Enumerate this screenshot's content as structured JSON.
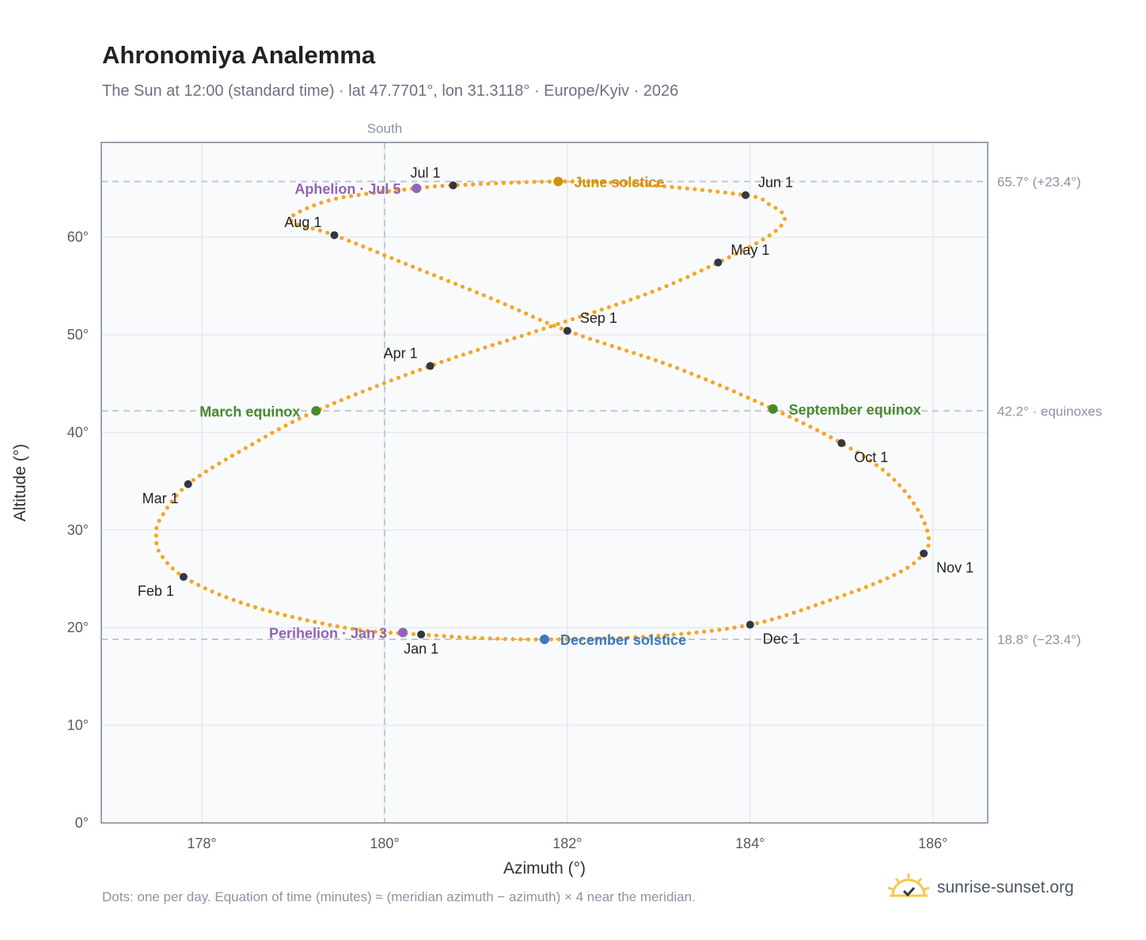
{
  "title": "Ahronomiya Analemma",
  "subtitle": "The Sun at 12:00 (standard time) · lat 47.7701°, lon 31.3118° · Europe/Kyiv · 2026",
  "footnote": "Dots: one per day. Equation of time (minutes) ≈ (meridian azimuth − azimuth) × 4 near the meridian.",
  "brand": {
    "text": "sunrise-sunset.org",
    "icon": "sunrise-check-icon"
  },
  "colors": {
    "path": "#f5a623",
    "month": "#333840",
    "june": "#d4900a",
    "december": "#3a78c2",
    "equinox": "#4a8a2e",
    "perihelion": "#9263b5",
    "grid": "#e6e9ee",
    "refline": "#c2c7cf",
    "plot_bg": "#f8fafc",
    "frame": "#9aa3b1",
    "axis_text": "#555b66"
  },
  "chart_data": {
    "type": "scatter",
    "title": "Ahronomiya Analemma",
    "xlabel": "Azimuth (°)",
    "ylabel": "Altitude (°)",
    "xlim": [
      176.9,
      186.6
    ],
    "ylim": [
      0,
      69.7
    ],
    "xticks": [
      {
        "v": 178,
        "label": "178°"
      },
      {
        "v": 180,
        "label": "180°"
      },
      {
        "v": 182,
        "label": "182°"
      },
      {
        "v": 184,
        "label": "184°"
      },
      {
        "v": 186,
        "label": "186°"
      }
    ],
    "yticks": [
      {
        "v": 0,
        "label": "0°"
      },
      {
        "v": 10,
        "label": "10°"
      },
      {
        "v": 20,
        "label": "20°"
      },
      {
        "v": 30,
        "label": "30°"
      },
      {
        "v": 40,
        "label": "40°"
      },
      {
        "v": 50,
        "label": "50°"
      },
      {
        "v": 60,
        "label": "60°"
      }
    ],
    "grid": true,
    "vertical_ref": {
      "x": 180,
      "label": "South"
    },
    "horizontal_refs": [
      {
        "y": 65.7,
        "label": "65.7° (+23.4°)"
      },
      {
        "y": 42.2,
        "label": "42.2° · equinoxes"
      },
      {
        "y": 18.8,
        "label": "18.8° (−23.4°)"
      }
    ],
    "analemma_path": [
      {
        "x": 180.4,
        "y": 19.3
      },
      {
        "x": 179.7,
        "y": 19.8
      },
      {
        "x": 178.9,
        "y": 21.3
      },
      {
        "x": 178.3,
        "y": 23.0
      },
      {
        "x": 177.8,
        "y": 25.2
      },
      {
        "x": 177.55,
        "y": 27.5
      },
      {
        "x": 177.5,
        "y": 29.4
      },
      {
        "x": 177.55,
        "y": 31.2
      },
      {
        "x": 177.85,
        "y": 34.7
      },
      {
        "x": 178.5,
        "y": 38.5
      },
      {
        "x": 179.25,
        "y": 42.2
      },
      {
        "x": 180.5,
        "y": 46.8
      },
      {
        "x": 181.8,
        "y": 50.8
      },
      {
        "x": 182.9,
        "y": 54.3
      },
      {
        "x": 183.65,
        "y": 57.4
      },
      {
        "x": 184.2,
        "y": 60.1
      },
      {
        "x": 184.38,
        "y": 62.0
      },
      {
        "x": 184.2,
        "y": 63.4
      },
      {
        "x": 183.95,
        "y": 64.3
      },
      {
        "x": 182.8,
        "y": 65.4
      },
      {
        "x": 181.9,
        "y": 65.7
      },
      {
        "x": 180.75,
        "y": 65.3
      },
      {
        "x": 180.35,
        "y": 65.0
      },
      {
        "x": 179.5,
        "y": 64.0
      },
      {
        "x": 179.05,
        "y": 62.5
      },
      {
        "x": 179.0,
        "y": 61.5
      },
      {
        "x": 179.45,
        "y": 60.2
      },
      {
        "x": 180.3,
        "y": 57.0
      },
      {
        "x": 181.2,
        "y": 53.6
      },
      {
        "x": 182.0,
        "y": 50.4
      },
      {
        "x": 183.2,
        "y": 46.6
      },
      {
        "x": 184.25,
        "y": 42.4
      },
      {
        "x": 185.0,
        "y": 38.9
      },
      {
        "x": 185.5,
        "y": 35.8
      },
      {
        "x": 185.8,
        "y": 32.6
      },
      {
        "x": 185.95,
        "y": 29.5
      },
      {
        "x": 185.9,
        "y": 27.6
      },
      {
        "x": 185.6,
        "y": 25.5
      },
      {
        "x": 184.9,
        "y": 22.9
      },
      {
        "x": 184.0,
        "y": 20.3
      },
      {
        "x": 182.9,
        "y": 19.1
      },
      {
        "x": 181.75,
        "y": 18.8
      },
      {
        "x": 181.0,
        "y": 18.95
      },
      {
        "x": 180.4,
        "y": 19.3
      }
    ],
    "months": [
      {
        "label": "Jan 1",
        "x": 180.4,
        "y": 19.3,
        "anchor": "below"
      },
      {
        "label": "Feb 1",
        "x": 177.8,
        "y": 25.2,
        "anchor": "below-left"
      },
      {
        "label": "Mar 1",
        "x": 177.85,
        "y": 34.7,
        "anchor": "below-left"
      },
      {
        "label": "Apr 1",
        "x": 180.5,
        "y": 46.8,
        "anchor": "above-left"
      },
      {
        "label": "May 1",
        "x": 183.65,
        "y": 57.4,
        "anchor": "above-right"
      },
      {
        "label": "Jun 1",
        "x": 183.95,
        "y": 64.3,
        "anchor": "above-right"
      },
      {
        "label": "Jul 1",
        "x": 180.75,
        "y": 65.3,
        "anchor": "above-left"
      },
      {
        "label": "Aug 1",
        "x": 179.45,
        "y": 60.2,
        "anchor": "above-left"
      },
      {
        "label": "Sep 1",
        "x": 182.0,
        "y": 50.4,
        "anchor": "above-right"
      },
      {
        "label": "Oct 1",
        "x": 185.0,
        "y": 38.9,
        "anchor": "below-right"
      },
      {
        "label": "Nov 1",
        "x": 185.9,
        "y": 27.6,
        "anchor": "below-right"
      },
      {
        "label": "Dec 1",
        "x": 184.0,
        "y": 20.3,
        "anchor": "below-right"
      }
    ],
    "events": [
      {
        "label": "June solstice",
        "x": 181.9,
        "y": 65.7,
        "color": "june",
        "side": "right"
      },
      {
        "label": "December solstice",
        "x": 181.75,
        "y": 18.8,
        "color": "december",
        "side": "right"
      },
      {
        "label": "March equinox",
        "x": 179.25,
        "y": 42.2,
        "color": "equinox",
        "side": "left"
      },
      {
        "label": "September equinox",
        "x": 184.25,
        "y": 42.4,
        "color": "equinox",
        "side": "right"
      },
      {
        "label": "Perihelion · Jan 3",
        "x": 180.2,
        "y": 19.5,
        "color": "perihelion",
        "side": "left"
      },
      {
        "label": "Aphelion · Jul 5",
        "x": 180.35,
        "y": 65.0,
        "color": "perihelion",
        "side": "left"
      }
    ]
  }
}
